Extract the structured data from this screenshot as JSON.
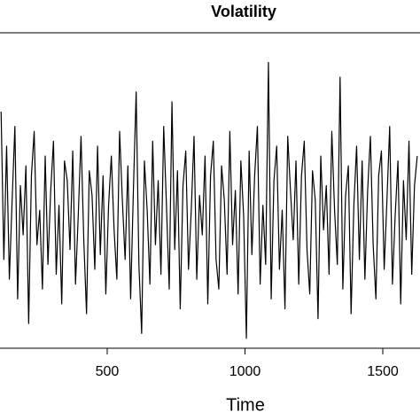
{
  "chart_data": {
    "type": "line",
    "title": "Volatility",
    "x_label": "Time",
    "x": [
      115,
      125,
      135,
      145,
      155,
      165,
      175,
      185,
      195,
      205,
      215,
      225,
      235,
      245,
      255,
      265,
      275,
      285,
      295,
      305,
      315,
      325,
      335,
      345,
      355,
      365,
      375,
      385,
      395,
      405,
      415,
      425,
      435,
      445,
      455,
      465,
      475,
      485,
      495,
      505,
      515,
      525,
      535,
      545,
      555,
      565,
      575,
      585,
      595,
      605,
      615,
      625,
      635,
      645,
      655,
      665,
      675,
      685,
      695,
      705,
      715,
      725,
      735,
      745,
      755,
      765,
      775,
      785,
      795,
      805,
      815,
      825,
      835,
      845,
      855,
      865,
      875,
      885,
      895,
      905,
      915,
      925,
      935,
      945,
      955,
      965,
      975,
      985,
      995,
      1005,
      1015,
      1025,
      1035,
      1045,
      1055,
      1065,
      1075,
      1085,
      1095,
      1105,
      1115,
      1125,
      1135,
      1145,
      1155,
      1165,
      1175,
      1185,
      1195,
      1205,
      1215,
      1225,
      1235,
      1245,
      1255,
      1265,
      1275,
      1285,
      1295,
      1305,
      1315,
      1325,
      1335,
      1345,
      1355,
      1365,
      1375,
      1385,
      1395,
      1405,
      1415,
      1425,
      1435,
      1445,
      1455,
      1465,
      1475,
      1485,
      1495,
      1505,
      1515,
      1525,
      1535,
      1545,
      1555,
      1565,
      1575,
      1585,
      1595,
      1605,
      1615,
      1625
    ],
    "series": [
      {
        "color": "#000000",
        "values": [
          2.2,
          -0.8,
          1.5,
          -1.2,
          0.4,
          1.9,
          -1.6,
          0.7,
          -0.3,
          1.1,
          -2.1,
          0.9,
          1.8,
          -0.5,
          0.2,
          -1.4,
          1.3,
          -0.9,
          0.6,
          1.6,
          -1.1,
          0.3,
          -1.7,
          1.2,
          0.8,
          -0.6,
          1.4,
          -1.3,
          0.1,
          1.7,
          -0.4,
          -1.9,
          1.0,
          0.5,
          -1.0,
          1.5,
          -0.7,
          0.9,
          -1.5,
          0.3,
          1.3,
          -0.2,
          -1.2,
          1.8,
          0.4,
          -0.8,
          1.1,
          -1.6,
          0.6,
          2.6,
          -0.9,
          -2.3,
          1.2,
          0.2,
          -1.3,
          1.6,
          -0.5,
          0.8,
          -1.1,
          1.9,
          0.3,
          -1.4,
          2.4,
          -0.6,
          1.0,
          -1.8,
          0.7,
          1.4,
          -1.0,
          0.2,
          1.7,
          -1.2,
          0.5,
          -0.3,
          1.3,
          -1.7,
          0.9,
          1.6,
          -0.8,
          -1.4,
          1.1,
          0.4,
          -1.1,
          1.8,
          -0.5,
          0.6,
          -1.5,
          1.2,
          0.1,
          -2.4,
          1.4,
          -0.7,
          0.9,
          1.9,
          -1.3,
          0.3,
          -0.9,
          3.2,
          -1.6,
          0.8,
          1.5,
          -1.0,
          0.2,
          -1.8,
          1.7,
          0.6,
          -0.4,
          1.2,
          -1.3,
          0.9,
          1.6,
          -0.6,
          -1.5,
          1.0,
          0.4,
          -2.0,
          1.3,
          -0.2,
          0.7,
          -1.1,
          1.8,
          0.2,
          -0.9,
          2.9,
          -1.4,
          0.5,
          1.1,
          -1.9,
          0.3,
          1.5,
          -0.8,
          1.2,
          -1.2,
          0.6,
          1.7,
          -0.5,
          -1.6,
          0.9,
          1.4,
          -1.0,
          0.4,
          1.9,
          -1.3,
          0.1,
          1.2,
          -1.7,
          0.8,
          -0.4,
          1.6,
          -1.1,
          0.7,
          1.3
        ]
      }
    ],
    "xlim": [
      111,
      1635
    ],
    "ylim": [
      -2.6,
      3.8
    ],
    "xticks": [
      500,
      1000,
      1500
    ]
  }
}
